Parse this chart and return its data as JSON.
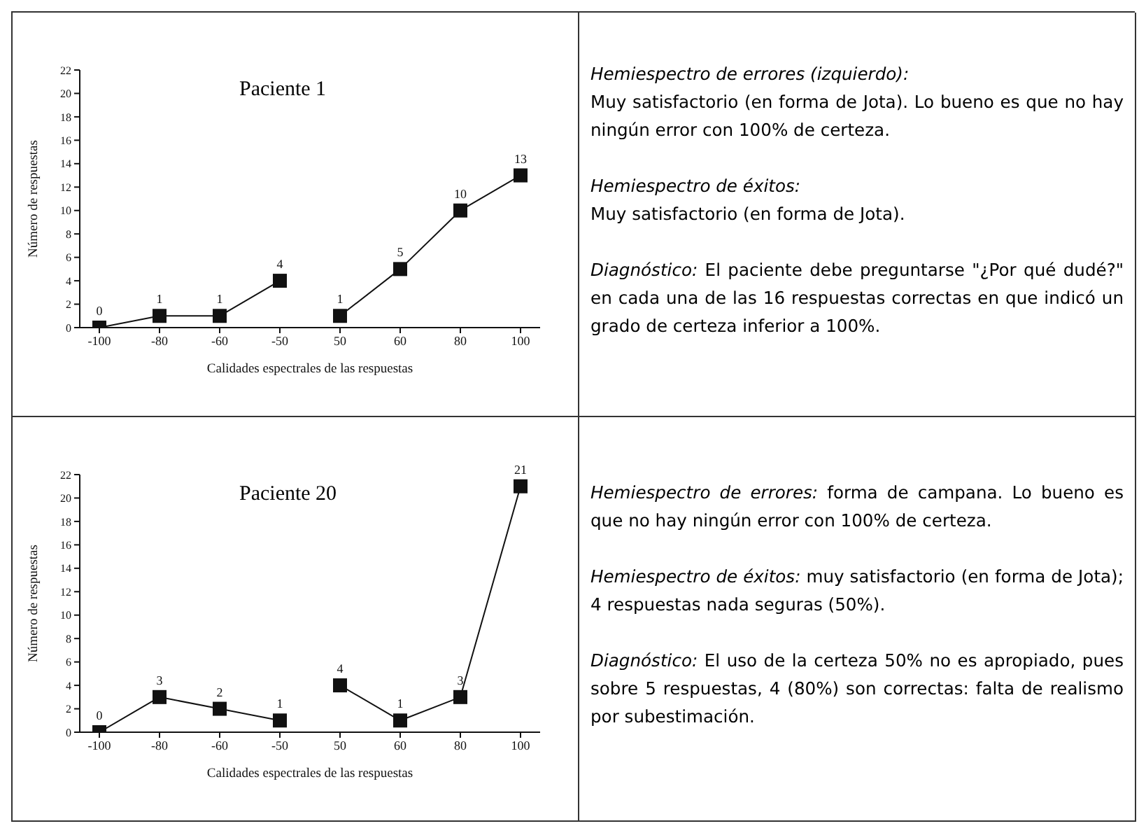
{
  "chart_data": [
    {
      "type": "line",
      "title": "Paciente 1",
      "xlabel": "Calidades espectrales de las respuestas",
      "ylabel": "Número de respuestas",
      "categories": [
        "-100",
        "-80",
        "-60",
        "-50",
        "50",
        "60",
        "80",
        "100"
      ],
      "series": [
        {
          "color": "#111111",
          "values": [
            0,
            1,
            1,
            4,
            null,
            null,
            null,
            null
          ]
        },
        {
          "color": "#111111",
          "values": [
            null,
            null,
            null,
            null,
            1,
            5,
            10,
            13
          ]
        }
      ],
      "ylim": [
        0,
        22
      ],
      "yticks": [
        0,
        2,
        4,
        6,
        8,
        10,
        12,
        14,
        16,
        18,
        20,
        22
      ],
      "grid": false,
      "legend": false,
      "marker": "square",
      "line_style": "solid",
      "data_labels": true
    },
    {
      "type": "other",
      "annotations": [
        "Hemiespectro de errores (izquierdo):\nMuy satisfactorio (en forma de Jota). Lo bueno es que no hay ningún error con 100% de certeza.",
        "Hemiespectro de éxitos:\nMuy satisfactorio (en forma de Jota).",
        "Diagnóstico: El paciente debe preguntarse \"¿Por qué dudé?\" en cada una de las 16 respuestas correctas en que indicó un grado de certeza inferior a 100%."
      ]
    },
    {
      "type": "line",
      "title": "Paciente 20",
      "xlabel": "Calidades espectrales de las respuestas",
      "ylabel": "Número de respuestas",
      "categories": [
        "-100",
        "-80",
        "-60",
        "-50",
        "50",
        "60",
        "80",
        "100"
      ],
      "series": [
        {
          "color": "#111111",
          "values": [
            0,
            3,
            2,
            1,
            null,
            null,
            null,
            null
          ]
        },
        {
          "color": "#111111",
          "values": [
            null,
            null,
            null,
            null,
            4,
            1,
            3,
            21
          ]
        }
      ],
      "ylim": [
        0,
        22
      ],
      "yticks": [
        0,
        2,
        4,
        6,
        8,
        10,
        12,
        14,
        16,
        18,
        20,
        22
      ],
      "grid": false,
      "legend": false,
      "marker": "square",
      "line_style": "solid",
      "data_labels": true
    },
    {
      "type": "other",
      "annotations": [
        "Hemiespectro de errores: forma de campana. Lo bueno es que no hay ningún error con 100% de certeza.",
        "Hemiespectro de éxitos: muy satisfactorio (en forma de Jota); 4 respuestas nada seguras (50%).",
        "Diagnóstico: El uso de la certeza 50% no es apropiado, pues sobre 5 respuestas, 4 (80%) son correctas: falta de realismo por subestimación."
      ]
    }
  ]
}
